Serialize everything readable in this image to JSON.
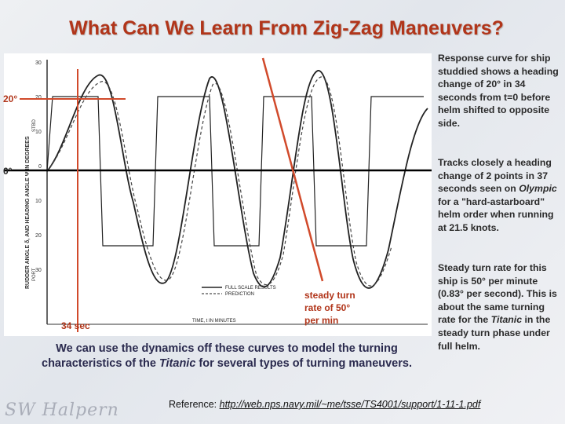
{
  "slide": {
    "title": "What Can We Learn From Zig-Zag Maneuvers?",
    "accent_color": "#b1351a"
  },
  "figure": {
    "y_ticks": [
      "30",
      "20",
      "10",
      "0",
      "10",
      "20",
      "30"
    ],
    "y_label": "RUDDER ANGLE δ, AND HEADING ANGLE Ψ IN DEGREES",
    "y_label_top": "STBD",
    "y_label_bottom": "PORT",
    "x_label": "TIME, t IN MINUTES",
    "legend_full_scale": "FULL SCALE RESULTS",
    "legend_prediction": "PREDICTION"
  },
  "annotations": {
    "twenty_deg": "20°",
    "zero_deg": "0°",
    "thirty_four_sec": "34 sec",
    "steady_turn": "steady turn\nrate of 50°\nper min"
  },
  "sidebar": {
    "para1": "Response curve for ship studdied shows a heading change of 20° in 34 seconds from t=0 before helm shifted to opposite side.",
    "para2_before": "Tracks closely a heading change of 2 points in 37 seconds seen on ",
    "para2_italic": "Olympic",
    "para2_after": " for a \"hard-astarboard\" helm order when running at 21.5 knots.",
    "para3_before": "Steady turn rate for this ship is 50° per minute (0.83° per second). This is about the same turning rate for the ",
    "para3_italic": "Titanic",
    "para3_after": " in the steady turn phase under full helm."
  },
  "main_text": {
    "before": "We can use the dynamics off these curves to model the turning characteristics of the ",
    "italic": "Titanic",
    "after": " for several types of turning maneuvers."
  },
  "reference": {
    "label": "Reference: ",
    "url": "http://web.nps.navy.mil/~me/tsse/TS4001/support/1-11-1.pdf"
  },
  "signature": "SW Halpern"
}
